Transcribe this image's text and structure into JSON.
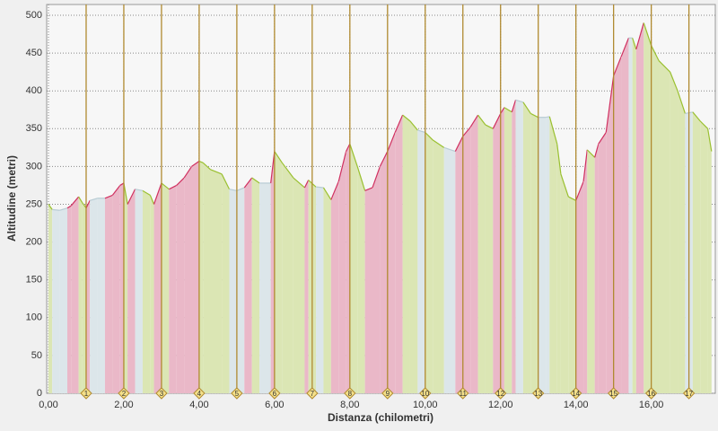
{
  "chart_data": {
    "type": "elevation",
    "x_label": "Distanza (chilometri)",
    "y_label": "Altitudine (metri)",
    "x": [
      0,
      0.1,
      0.3,
      0.5,
      0.6,
      0.8,
      0.9,
      1.0,
      1.1,
      1.3,
      1.5,
      1.7,
      1.9,
      2.0,
      2.1,
      2.3,
      2.5,
      2.7,
      2.8,
      3.0,
      3.2,
      3.4,
      3.6,
      3.8,
      4.0,
      4.1,
      4.3,
      4.6,
      4.8,
      5.0,
      5.2,
      5.4,
      5.6,
      5.9,
      6.0,
      6.2,
      6.5,
      6.8,
      6.9,
      7.1,
      7.3,
      7.5,
      7.7,
      7.9,
      8.0,
      8.2,
      8.4,
      8.6,
      8.8,
      9.0,
      9.2,
      9.4,
      9.6,
      9.8,
      10.0,
      10.2,
      10.5,
      10.8,
      11.0,
      11.2,
      11.4,
      11.6,
      11.8,
      12.0,
      12.1,
      12.3,
      12.4,
      12.6,
      12.8,
      13.0,
      13.2,
      13.3,
      13.5,
      13.6,
      13.8,
      14.0,
      14.2,
      14.3,
      14.5,
      14.6,
      14.8,
      15.0,
      15.2,
      15.4,
      15.5,
      15.6,
      15.8,
      16.0,
      16.2,
      16.5,
      16.7,
      16.9,
      17.1,
      17.3,
      17.5,
      17.6
    ],
    "values": [
      250,
      243,
      242,
      245,
      248,
      260,
      252,
      245,
      255,
      258,
      258,
      262,
      275,
      278,
      250,
      270,
      268,
      262,
      250,
      278,
      270,
      275,
      285,
      300,
      307,
      305,
      296,
      290,
      270,
      268,
      272,
      285,
      278,
      278,
      320,
      305,
      285,
      272,
      282,
      273,
      272,
      256,
      280,
      320,
      330,
      300,
      268,
      272,
      300,
      320,
      345,
      368,
      360,
      348,
      345,
      335,
      325,
      320,
      340,
      352,
      368,
      355,
      350,
      370,
      378,
      372,
      388,
      385,
      370,
      365,
      365,
      366,
      330,
      290,
      260,
      255,
      280,
      322,
      312,
      330,
      345,
      420,
      445,
      470,
      470,
      455,
      490,
      460,
      440,
      425,
      400,
      370,
      372,
      360,
      350,
      320
    ],
    "up_color": "#d03060",
    "up_fill": "#eab8c8",
    "down_color": "#9ac030",
    "down_fill": "#dbe6b4",
    "flat_color": "#b8ccd4",
    "flat_fill": "#dce6ea",
    "km_markers": [
      1,
      2,
      3,
      4,
      5,
      6,
      7,
      8,
      9,
      10,
      11,
      12,
      13,
      14,
      15,
      16,
      17
    ],
    "marker_color": "#b08a30",
    "xlim": [
      0,
      17.7
    ],
    "ylim": [
      0,
      500
    ],
    "xticks": [
      {
        "value": 0,
        "label": "0,00"
      },
      {
        "value": 2,
        "label": "2,00"
      },
      {
        "value": 4,
        "label": "4,00"
      },
      {
        "value": 6,
        "label": "6,00"
      },
      {
        "value": 8,
        "label": "8,00"
      },
      {
        "value": 10,
        "label": "10,00"
      },
      {
        "value": 12,
        "label": "12,00"
      },
      {
        "value": 14,
        "label": "14,00"
      },
      {
        "value": 16,
        "label": "16,00"
      }
    ],
    "yticks": [
      0,
      50,
      100,
      150,
      200,
      250,
      300,
      350,
      400,
      450,
      500
    ],
    "grid": true
  }
}
